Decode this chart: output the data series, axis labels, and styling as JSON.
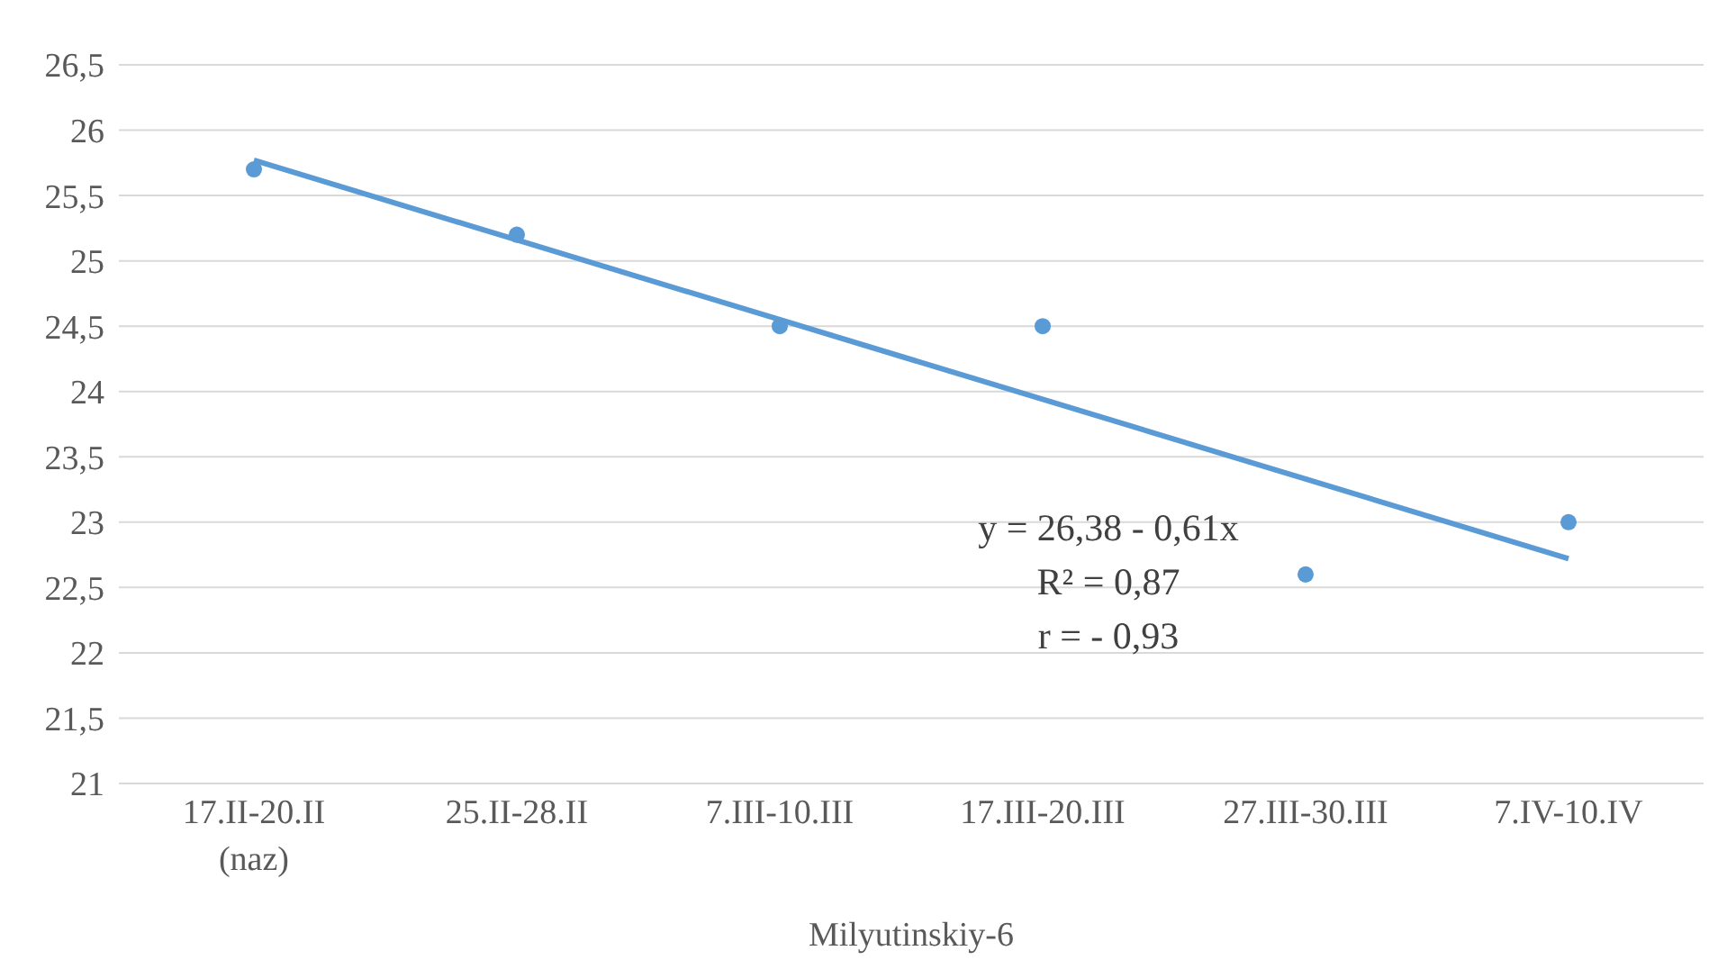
{
  "chart_data": {
    "type": "scatter",
    "xlabel": "Milyutinskiy-6",
    "categories": [
      "17.II-20.II (naz)",
      "25.II-28.II",
      "7.III-10.III",
      "17.III-20.III",
      "27.III-30.III",
      "7.IV-10.IV"
    ],
    "series": [
      {
        "color": "#5b9bd5",
        "values": [
          25.7,
          25.2,
          24.5,
          24.5,
          22.6,
          23.0
        ]
      },
      {
        "type": "line",
        "marker": "none",
        "color": "#5b9bd5",
        "values": [
          25.77,
          25.16,
          24.55,
          23.94,
          23.33,
          22.72
        ]
      }
    ],
    "ylim": [
      21,
      26.5
    ],
    "yticks": [
      21,
      {
        "value": 21.5,
        "label": "21,5"
      },
      22,
      {
        "value": 22.5,
        "label": "22,5"
      },
      23,
      {
        "value": 23.5,
        "label": "23,5"
      },
      24,
      {
        "value": 24.5,
        "label": "24,5"
      },
      25,
      {
        "value": 25.5,
        "label": "25,5"
      },
      26,
      {
        "value": 26.5,
        "label": "26,5"
      }
    ],
    "grid": "y",
    "marker": "circle",
    "line_style": "solid",
    "annotations": [
      "y = 26,38 - 0,61x",
      "R² = 0,87",
      "r = - 0,93"
    ]
  }
}
